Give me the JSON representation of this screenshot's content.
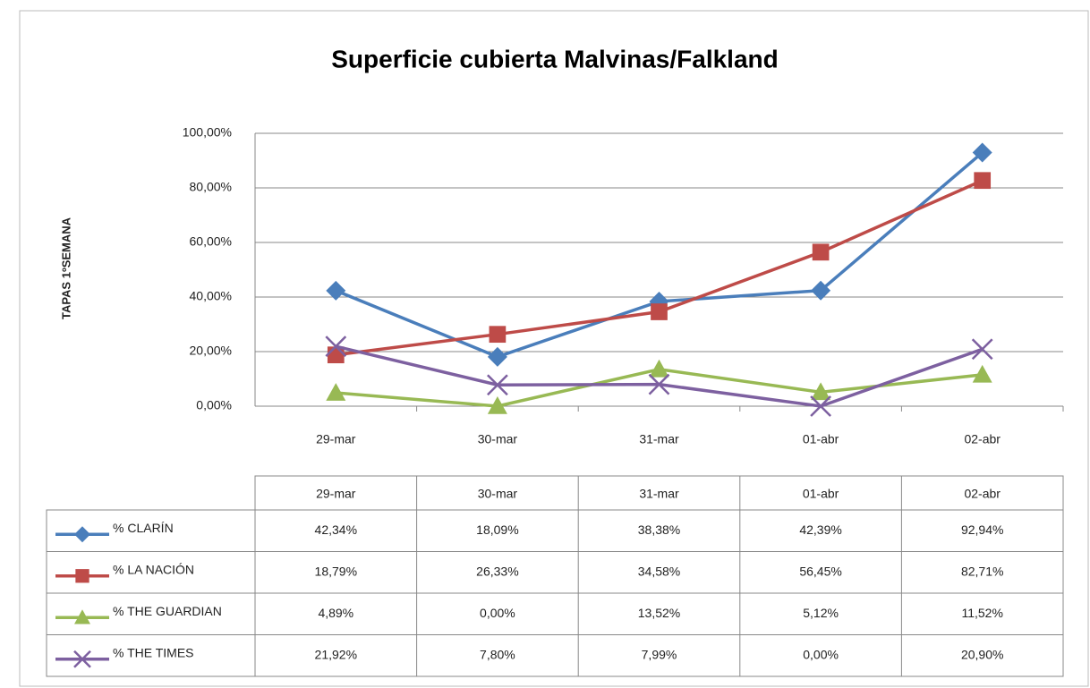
{
  "chart_data": {
    "type": "line",
    "title": "Superficie cubierta Malvinas/Falkland",
    "y_label": "TAPAS 1ºSEMANA",
    "categories": [
      "29-mar",
      "30-mar",
      "31-mar",
      "01-abr",
      "02-abr"
    ],
    "ylim": [
      0,
      100
    ],
    "yticks": [
      {
        "value": 0,
        "label": "0,00%"
      },
      {
        "value": 20,
        "label": "20,00%"
      },
      {
        "value": 40,
        "label": "40,00%"
      },
      {
        "value": 60,
        "label": "60,00%"
      },
      {
        "value": 80,
        "label": "80,00%"
      },
      {
        "value": 100,
        "label": "100,00%"
      }
    ],
    "grid": true,
    "series": [
      {
        "name": "% CLARÍN",
        "color": "#4a7ebb",
        "marker": "diamond",
        "values": [
          42.34,
          18.09,
          38.38,
          42.39,
          92.94
        ],
        "value_labels": [
          "42,34%",
          "18,09%",
          "38,38%",
          "42,39%",
          "92,94%"
        ]
      },
      {
        "name": "% LA NACIÓN",
        "color": "#be4b48",
        "marker": "square",
        "values": [
          18.79,
          26.33,
          34.58,
          56.45,
          82.71
        ],
        "value_labels": [
          "18,79%",
          "26,33%",
          "34,58%",
          "56,45%",
          "82,71%"
        ]
      },
      {
        "name": "% THE GUARDIAN",
        "color": "#98b954",
        "marker": "triangle",
        "values": [
          4.89,
          0.0,
          13.52,
          5.12,
          11.52
        ],
        "value_labels": [
          "4,89%",
          "0,00%",
          "13,52%",
          "5,12%",
          "11,52%"
        ]
      },
      {
        "name": "% THE TIMES",
        "color": "#7d60a0",
        "marker": "x",
        "values": [
          21.92,
          7.8,
          7.99,
          0.0,
          20.9
        ],
        "value_labels": [
          "21,92%",
          "7,80%",
          "7,99%",
          "0,00%",
          "20,90%"
        ]
      }
    ]
  }
}
